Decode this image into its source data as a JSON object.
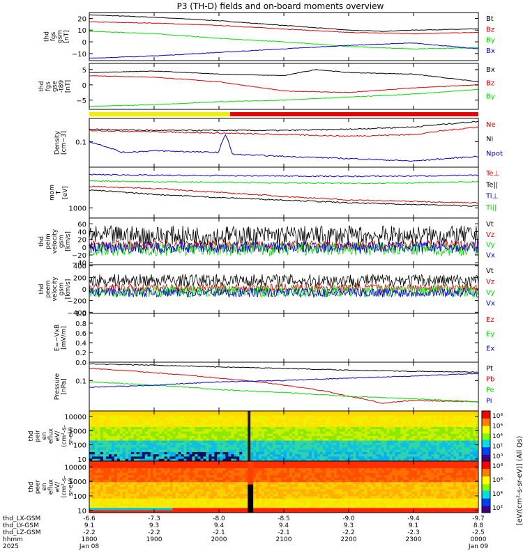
{
  "title": "P3 (TH-D) fields and on-board moments overview",
  "colors": {
    "black": "#000000",
    "red": "#dd0000",
    "green": "#00dd00",
    "blue": "#0000cc",
    "yellow": "#f0f000"
  },
  "footer": {
    "rows": [
      {
        "label": "thd_LX-GSM",
        "values": [
          "-6.6",
          "-7.3",
          "-8.0",
          "-8.5",
          "-9.0",
          "-9.4",
          "-9.7"
        ]
      },
      {
        "label": "thd_LY-GSM",
        "values": [
          "9.1",
          "9.3",
          "9.4",
          "9.4",
          "9.3",
          "9.1",
          "8.8"
        ]
      },
      {
        "label": "thd_LZ-GSM",
        "values": [
          "-2.2",
          "-2.2",
          "-2.1",
          "-2.1",
          "-2.2",
          "-2.3",
          "-2.5"
        ]
      },
      {
        "label": "hhmm",
        "values": [
          "1800",
          "1900",
          "2000",
          "2100",
          "2200",
          "2300",
          "0000"
        ]
      },
      {
        "label": "2025",
        "values": [
          "Jan 08",
          "",
          "",
          "",
          "",
          "",
          "Jan 09"
        ]
      }
    ]
  },
  "colorbar_label": "[eV/(cm²-s-sr-eV)] (All Qs)",
  "chart_data": [
    {
      "type": "line",
      "ylabel": "thd\nfgs\ngsm\n[nT]",
      "ylim": [
        -16,
        25
      ],
      "yticks": [
        "20",
        "10",
        "0",
        "−10"
      ],
      "ytick_values": [
        20,
        10,
        0,
        -10
      ],
      "series": [
        {
          "name": "Bt",
          "color": "#000000",
          "x": [
            18.0,
            19.0,
            20.0,
            21.0,
            22.0,
            22.5,
            23.0,
            24.0
          ],
          "y": [
            23,
            21,
            18,
            14,
            10,
            9,
            10,
            11
          ]
        },
        {
          "name": "Bz",
          "color": "#dd0000",
          "x": [
            18.0,
            19.0,
            20.0,
            21.0,
            22.0,
            23.0,
            24.0
          ],
          "y": [
            17,
            16,
            14,
            11,
            8,
            7,
            8
          ]
        },
        {
          "name": "By",
          "color": "#00dd00",
          "x": [
            18.0,
            19.0,
            20.0,
            21.0,
            22.0,
            23.0,
            24.0
          ],
          "y": [
            9,
            7,
            3,
            0,
            -4,
            -6,
            -5
          ]
        },
        {
          "name": "Bx",
          "color": "#0000cc",
          "x": [
            18.0,
            19.0,
            20.0,
            21.0,
            22.0,
            23.0,
            24.0
          ],
          "y": [
            -14,
            -12,
            -9,
            -6,
            -3,
            -1,
            -6
          ]
        }
      ]
    },
    {
      "type": "line",
      "ylabel": "thd\nfgs\ngse\n-t89\n[nT]",
      "ylim": [
        -8,
        7
      ],
      "yticks": [
        "5",
        "0",
        "−5"
      ],
      "ytick_values": [
        5,
        0,
        -5
      ],
      "series": [
        {
          "name": "Bx",
          "color": "#000000",
          "x": [
            18.0,
            19.0,
            20.0,
            21.0,
            21.5,
            22.0,
            23.0,
            24.0
          ],
          "y": [
            4,
            4.5,
            3.5,
            3,
            5,
            4,
            3.5,
            1
          ]
        },
        {
          "name": "Bz",
          "color": "#dd0000",
          "x": [
            18.0,
            19.0,
            20.0,
            21.0,
            22.0,
            23.0,
            24.0
          ],
          "y": [
            3,
            2.5,
            1,
            -2,
            -2.5,
            -1,
            0
          ]
        },
        {
          "name": "By",
          "color": "#00dd00",
          "x": [
            18.0,
            19.0,
            20.0,
            21.0,
            22.0,
            23.0,
            24.0
          ],
          "y": [
            -7,
            -6.5,
            -5.5,
            -5,
            -4,
            -3,
            -1.5
          ]
        }
      ]
    },
    {
      "type": "line",
      "ylabel": "Density\n[cm−3]",
      "ylim": [
        0.03,
        0.3
      ],
      "log": true,
      "yticks": [
        "0.1"
      ],
      "ytick_values": [
        0.1
      ],
      "series": [
        {
          "name": "Ne",
          "color": "#dd0000",
          "x": [
            18.0,
            19.0,
            20.0,
            21.0,
            22.0,
            23.0,
            24.0
          ],
          "y": [
            0.17,
            0.16,
            0.15,
            0.14,
            0.13,
            0.14,
            0.2
          ]
        },
        {
          "name": "Ni",
          "color": "#000000",
          "x": [
            18.0,
            19.0,
            20.0,
            21.0,
            22.0,
            23.0,
            24.0
          ],
          "y": [
            0.18,
            0.17,
            0.17,
            0.17,
            0.18,
            0.2,
            0.26
          ]
        },
        {
          "name": "Npot",
          "color": "#0000cc",
          "x": [
            18.0,
            18.5,
            19.0,
            20.0,
            20.1,
            20.2,
            21.0,
            22.0,
            23.0,
            24.0
          ],
          "y": [
            0.1,
            0.06,
            0.065,
            0.06,
            0.14,
            0.055,
            0.05,
            0.045,
            0.04,
            0.05
          ]
        }
      ]
    },
    {
      "type": "line",
      "ylabel": "mom\nT\n[eV]",
      "ylim": [
        600,
        8000
      ],
      "log": true,
      "yticks": [
        "1000"
      ],
      "ytick_values": [
        1000
      ],
      "series": [
        {
          "name": "Te⊥",
          "color": "#dd0000",
          "x": [
            18.0,
            19.0,
            20.0,
            21.0,
            22.0,
            23.0,
            24.0
          ],
          "y": [
            3000,
            2700,
            2200,
            1800,
            1500,
            1400,
            1300
          ]
        },
        {
          "name": "Te||",
          "color": "#000000",
          "x": [
            18.0,
            19.0,
            20.0,
            21.0,
            22.0,
            23.0,
            24.0
          ],
          "y": [
            2500,
            2000,
            1700,
            1500,
            1300,
            1200,
            1100
          ]
        },
        {
          "name": "Ti⊥",
          "color": "#0000cc",
          "x": [
            18.0,
            19.0,
            20.0,
            21.0,
            22.0,
            23.0,
            24.0
          ],
          "y": [
            5500,
            5300,
            5200,
            5100,
            5000,
            5100,
            5300
          ]
        },
        {
          "name": "Ti||",
          "color": "#00dd00",
          "x": [
            18.0,
            19.0,
            20.0,
            21.0,
            22.0,
            23.0,
            24.0
          ],
          "y": [
            4000,
            3800,
            3700,
            3600,
            3500,
            3600,
            3800
          ]
        }
      ]
    },
    {
      "type": "line",
      "ylabel": "thd\npeim\nvelocity\ngsm\n[km/s]",
      "ylim": [
        -45,
        75
      ],
      "yticks": [
        "60",
        "40",
        "20",
        "0",
        "−20",
        "−40"
      ],
      "ytick_values": [
        60,
        40,
        20,
        0,
        -20,
        -40
      ],
      "series": [
        {
          "name": "Vt",
          "color": "#000000",
          "mean": 30,
          "noise": 25
        },
        {
          "name": "Vz",
          "color": "#dd0000",
          "mean": 5,
          "noise": 12
        },
        {
          "name": "Vy",
          "color": "#00dd00",
          "mean": -5,
          "noise": 18
        },
        {
          "name": "Vx",
          "color": "#0000cc",
          "mean": 0,
          "noise": 15
        }
      ]
    },
    {
      "type": "line",
      "ylabel": "thd\npeem\nvelocity\ngsm\n[km/s]",
      "ylim": [
        -420,
        420
      ],
      "yticks": [
        "400",
        "200",
        "0",
        "−200",
        "−400"
      ],
      "ytick_values": [
        400,
        200,
        0,
        -200,
        -400
      ],
      "series": [
        {
          "name": "Vt",
          "color": "#000000",
          "mean": 150,
          "noise": 110
        },
        {
          "name": "Vz",
          "color": "#dd0000",
          "mean": 20,
          "noise": 70
        },
        {
          "name": "Vy",
          "color": "#00dd00",
          "mean": -40,
          "noise": 100
        },
        {
          "name": "Vx",
          "color": "#0000cc",
          "mean": -60,
          "noise": 80
        }
      ]
    },
    {
      "type": "line",
      "ylabel": "E=−VxB\n[mV/m]",
      "ylim": [
        0,
        1
      ],
      "yticks": [
        "1.0",
        "0.8",
        "0.6",
        "0.4",
        "0.2",
        "0.0"
      ],
      "ytick_values": [
        1,
        0.8,
        0.6,
        0.4,
        0.2,
        0
      ],
      "series": [
        {
          "name": "Ez",
          "color": "#dd0000"
        },
        {
          "name": "Ey",
          "color": "#00dd00"
        },
        {
          "name": "Ex",
          "color": "#0000cc"
        }
      ]
    },
    {
      "type": "line",
      "ylabel": "Pressure\n[nPa]",
      "ylim": [
        0.01,
        0.4
      ],
      "log": true,
      "yticks": [
        "0.1"
      ],
      "ytick_values": [
        0.1
      ],
      "series": [
        {
          "name": "Pt",
          "color": "#000000",
          "x": [
            18.0,
            19.0,
            20.0,
            21.0,
            22.0,
            23.0,
            24.0
          ],
          "y": [
            0.35,
            0.32,
            0.28,
            0.25,
            0.22,
            0.2,
            0.19
          ]
        },
        {
          "name": "Pb",
          "color": "#dd0000",
          "x": [
            18.0,
            19.0,
            20.0,
            21.0,
            22.0,
            22.5,
            23.0,
            24.0
          ],
          "y": [
            0.25,
            0.18,
            0.12,
            0.07,
            0.03,
            0.018,
            0.022,
            0.02
          ]
        },
        {
          "name": "Pe",
          "color": "#00dd00",
          "x": [
            18.0,
            19.0,
            20.0,
            21.0,
            22.0,
            23.0,
            24.0
          ],
          "y": [
            0.09,
            0.07,
            0.05,
            0.04,
            0.03,
            0.025,
            0.02
          ]
        },
        {
          "name": "Pi",
          "color": "#0000cc",
          "x": [
            18.0,
            19.0,
            20.0,
            21.0,
            22.0,
            23.0,
            24.0
          ],
          "y": [
            0.06,
            0.07,
            0.09,
            0.1,
            0.12,
            0.14,
            0.17
          ]
        }
      ]
    },
    {
      "type": "heatmap",
      "ylabel": "thd\npeir\nen\neflux\neV/\n(cm²-s-\nsr-eV)",
      "ylim": [
        7,
        25000
      ],
      "log": true,
      "yticks": [
        "10000",
        "1000",
        "100",
        "10"
      ],
      "ytick_values": [
        10000,
        1000,
        100,
        10
      ],
      "colorbar_ticks": [
        "10⁸",
        "10⁶",
        "10⁴",
        "10²",
        "10⁰"
      ]
    },
    {
      "type": "heatmap",
      "ylabel": "thd\npeer\nen\neflux\neV/\n(cm²-s-\nsr-eV)",
      "ylim": [
        7,
        25000
      ],
      "log": true,
      "yticks": [
        "10000",
        "1000",
        "100",
        "10"
      ],
      "ytick_values": [
        10000,
        1000,
        100,
        10
      ],
      "colorbar_ticks": [
        "10⁸",
        "10⁶",
        "10⁴",
        "10²"
      ]
    }
  ]
}
